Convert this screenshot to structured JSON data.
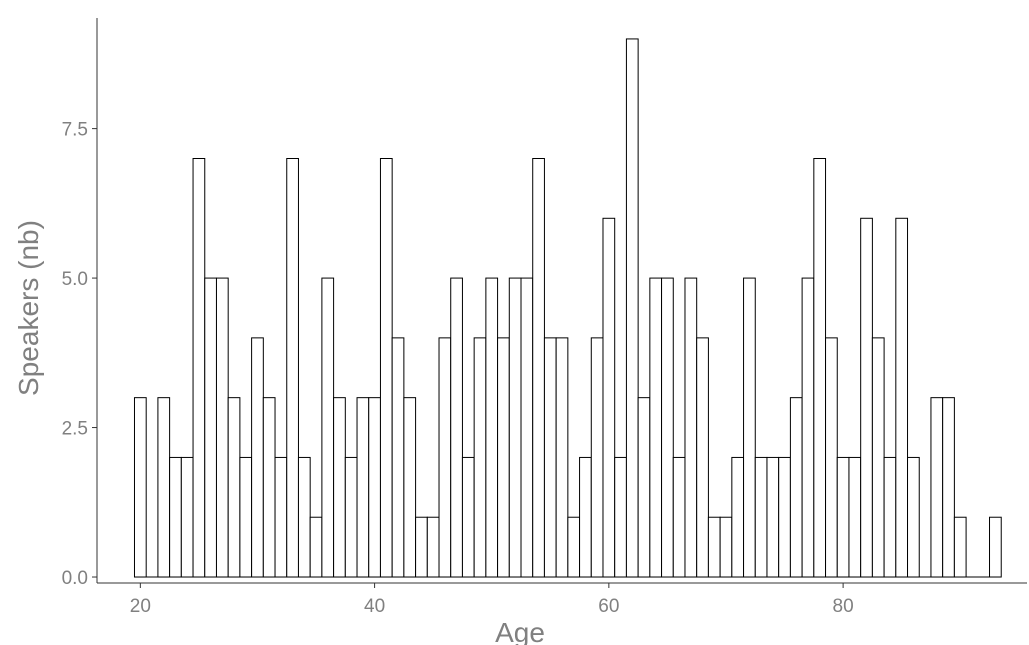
{
  "chart_data": {
    "type": "bar",
    "title": "",
    "xlabel": "Age",
    "ylabel": "Speakers (nb)",
    "x": [
      20,
      22,
      23,
      24,
      25,
      26,
      27,
      28,
      29,
      30,
      31,
      32,
      33,
      34,
      35,
      36,
      37,
      38,
      39,
      40,
      41,
      42,
      43,
      44,
      45,
      46,
      47,
      48,
      49,
      50,
      51,
      52,
      53,
      54,
      55,
      56,
      57,
      58,
      59,
      60,
      61,
      62,
      63,
      64,
      65,
      66,
      67,
      68,
      69,
      70,
      71,
      72,
      73,
      74,
      75,
      76,
      77,
      78,
      79,
      80,
      81,
      82,
      83,
      84,
      85,
      86,
      88,
      89,
      90,
      93
    ],
    "values": [
      3,
      3,
      2,
      2,
      7,
      5,
      5,
      3,
      2,
      4,
      3,
      2,
      7,
      2,
      1,
      5,
      3,
      2,
      3,
      3,
      7,
      4,
      3,
      1,
      1,
      4,
      5,
      2,
      4,
      5,
      4,
      5,
      5,
      7,
      4,
      4,
      1,
      2,
      4,
      6,
      2,
      9,
      3,
      5,
      5,
      2,
      5,
      4,
      1,
      1,
      2,
      5,
      2,
      2,
      2,
      3,
      5,
      7,
      4,
      2,
      2,
      6,
      4,
      2,
      6,
      2,
      3,
      3,
      1,
      1
    ],
    "xlim": [
      16.3,
      95.7
    ],
    "ylim": [
      -0.1,
      9.35
    ],
    "xticks": [
      20,
      40,
      60,
      80
    ],
    "yticks": [
      0,
      2.5,
      5,
      7.5
    ],
    "xtick_labels": [
      "20",
      "40",
      "60",
      "80"
    ],
    "ytick_labels": [
      "0.0",
      "2.5",
      "5.0",
      "7.5"
    ],
    "grid": false,
    "legend": "none",
    "colors": {
      "bar_fill": "#ffffff",
      "bar_stroke": "#000000",
      "axis": "#333333",
      "text": "#808080"
    }
  }
}
